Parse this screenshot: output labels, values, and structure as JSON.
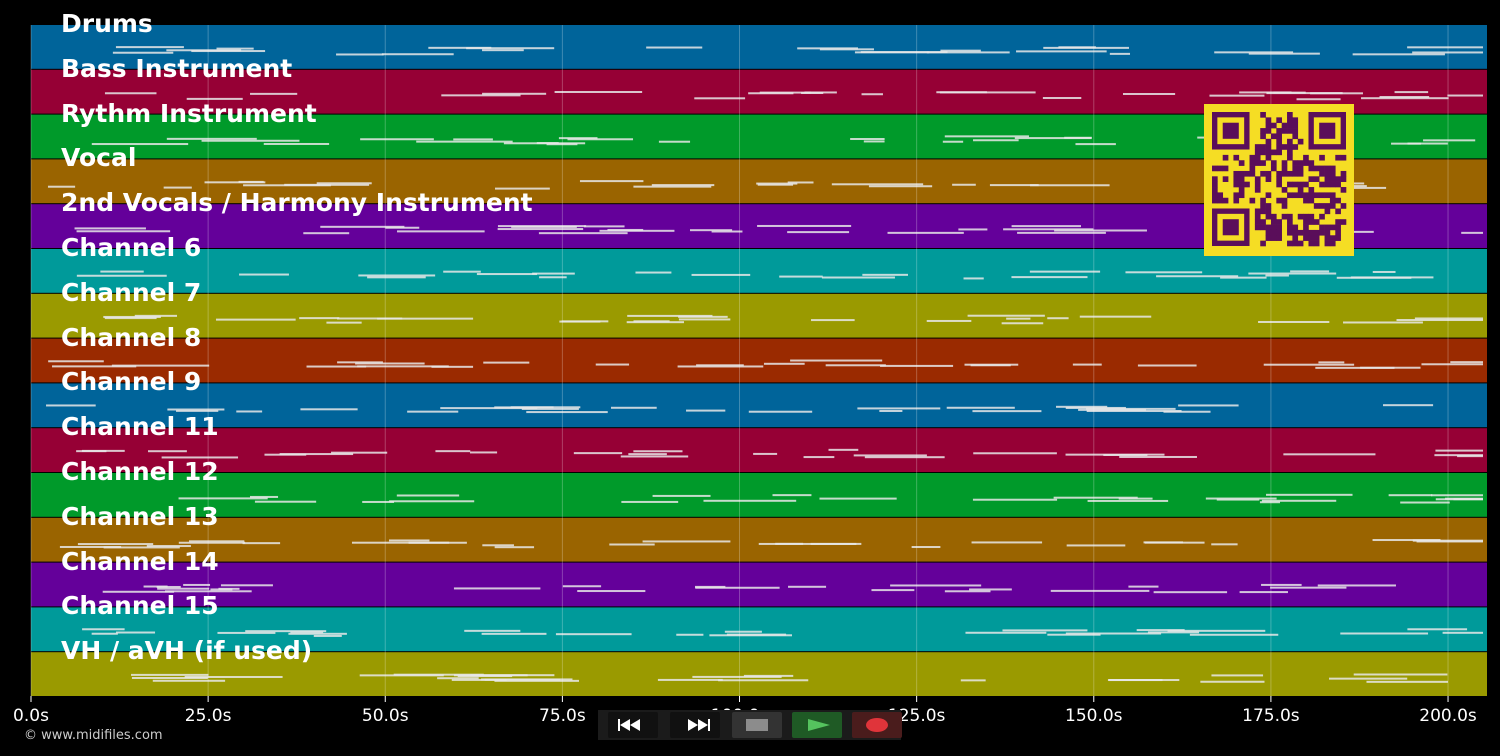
{
  "tracks": [
    {
      "name": "Drums",
      "color": "#00649a"
    },
    {
      "name": "Bass Instrument",
      "color": "#960035"
    },
    {
      "name": "Rythm Instrument",
      "color": "#009a2a"
    },
    {
      "name": "Vocal",
      "color": "#9a6400"
    },
    {
      "name": "2nd Vocals / Harmony Instrument",
      "color": "#64009a"
    },
    {
      "name": "Channel 6",
      "color": "#009a9a"
    },
    {
      "name": "Channel 7",
      "color": "#9a9a00"
    },
    {
      "name": "Channel 8",
      "color": "#9a2a00"
    },
    {
      "name": "Channel 9",
      "color": "#00649a"
    },
    {
      "name": "Channel 11",
      "color": "#960035"
    },
    {
      "name": "Channel 12",
      "color": "#009a2a"
    },
    {
      "name": "Channel 13",
      "color": "#9a6400"
    },
    {
      "name": "Channel 14",
      "color": "#64009a"
    },
    {
      "name": "Channel 15",
      "color": "#009a9a"
    },
    {
      "name": "VH / aVH (if used)",
      "color": "#9a9a00"
    }
  ],
  "timeline": {
    "max_seconds": 205.5,
    "ticks": [
      {
        "value": 0,
        "label": "0.0s"
      },
      {
        "value": 25,
        "label": "25.0s"
      },
      {
        "value": 50,
        "label": "50.0s"
      },
      {
        "value": 75,
        "label": "75.0s"
      },
      {
        "value": 100,
        "label": "100.0s"
      },
      {
        "value": 125,
        "label": "125.0s"
      },
      {
        "value": 150,
        "label": "150.0s"
      },
      {
        "value": 175,
        "label": "175.0s"
      },
      {
        "value": 200,
        "label": "200.0s"
      }
    ]
  },
  "transport": {
    "rewind_icon": "rewind-icon",
    "fast_forward_icon": "fast-forward-icon",
    "stop_icon": "stop-icon",
    "play_icon": "play-icon",
    "record_icon": "record-icon"
  },
  "colors": {
    "qr_background": "#f5dd24",
    "qr_modules": "#5a0e5a",
    "play": "#55c35e",
    "record": "#e0343a"
  },
  "copyright": "© www.midifiles.com"
}
